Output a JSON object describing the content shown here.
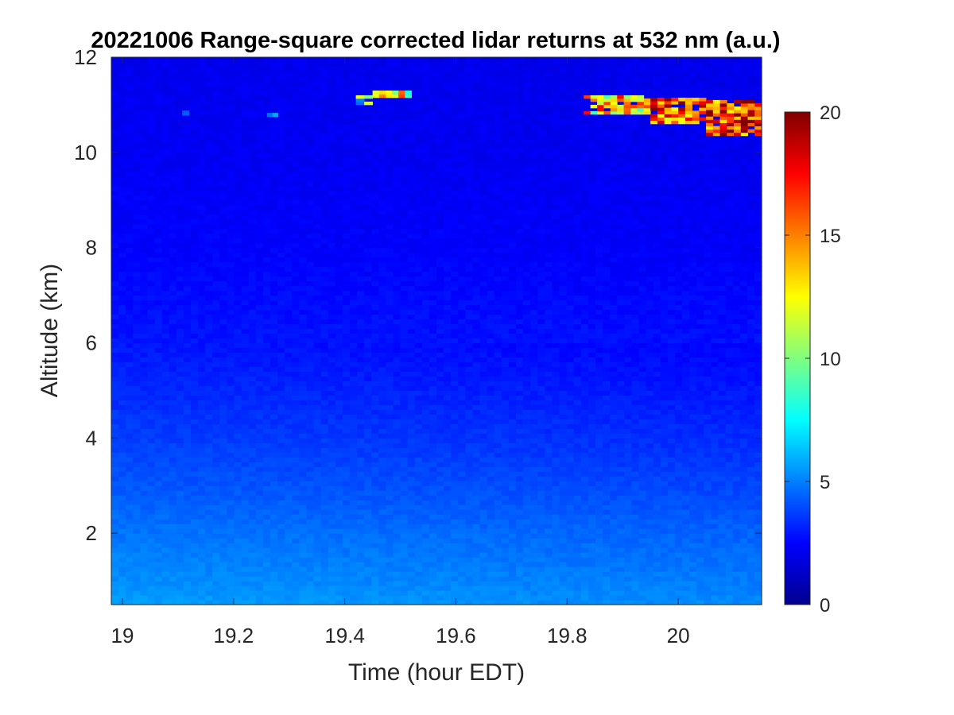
{
  "chart_data": {
    "type": "heatmap",
    "title": "20221006  Range-square corrected lidar returns at 532 nm (a.u.)",
    "xlabel": "Time (hour EDT)",
    "ylabel": "Altitude (km)",
    "xlim": [
      18.98,
      20.15
    ],
    "ylim": [
      0.5,
      12
    ],
    "x_ticks": [
      19,
      19.2,
      19.4,
      19.6,
      19.8,
      20
    ],
    "x_tick_labels": [
      "19",
      "19.2",
      "19.4",
      "19.6",
      "19.8",
      "20"
    ],
    "y_ticks": [
      2,
      4,
      6,
      8,
      10,
      12
    ],
    "y_tick_labels": [
      "2",
      "4",
      "6",
      "8",
      "10",
      "12"
    ],
    "colorbar": {
      "colormap": "jet",
      "clim": [
        0,
        20
      ],
      "ticks": [
        0,
        5,
        10,
        15,
        20
      ],
      "tick_labels": [
        "0",
        "5",
        "10",
        "15",
        "20"
      ]
    },
    "background_profile": [
      {
        "altitude": 0.5,
        "value": 5.6
      },
      {
        "altitude": 1.0,
        "value": 5.3
      },
      {
        "altitude": 2.0,
        "value": 4.8
      },
      {
        "altitude": 3.0,
        "value": 4.2
      },
      {
        "altitude": 4.0,
        "value": 3.7
      },
      {
        "altitude": 5.0,
        "value": 3.3
      },
      {
        "altitude": 6.0,
        "value": 2.9
      },
      {
        "altitude": 8.0,
        "value": 2.5
      },
      {
        "altitude": 10.0,
        "value": 2.3
      },
      {
        "altitude": 12.0,
        "value": 2.2
      }
    ],
    "cloud_layers": [
      {
        "t_start": 19.07,
        "t_end": 19.12,
        "alt_bottom": 10.78,
        "alt_top": 10.88,
        "value": 6
      },
      {
        "t_start": 19.26,
        "t_end": 19.28,
        "alt_bottom": 10.75,
        "alt_top": 10.83,
        "value": 5
      },
      {
        "t_start": 19.42,
        "t_end": 19.45,
        "alt_bottom": 11.0,
        "alt_top": 11.2,
        "value": 8
      },
      {
        "t_start": 19.45,
        "t_end": 19.52,
        "alt_bottom": 11.15,
        "alt_top": 11.3,
        "value": 12
      },
      {
        "t_start": 19.83,
        "t_end": 19.95,
        "alt_bottom": 10.8,
        "alt_top": 11.2,
        "value": 13
      },
      {
        "t_start": 19.95,
        "t_end": 20.05,
        "alt_bottom": 10.6,
        "alt_top": 11.15,
        "value": 16
      },
      {
        "t_start": 20.05,
        "t_end": 20.15,
        "alt_bottom": 10.35,
        "alt_top": 11.1,
        "value": 17
      }
    ]
  }
}
